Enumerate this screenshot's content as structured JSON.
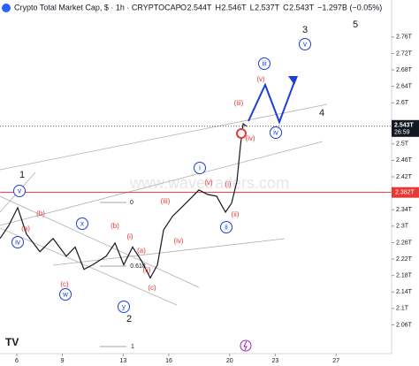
{
  "header": {
    "symbol": "Crypto Total Market Cap, $ · 1h · CRYPTOCAP",
    "quote": [
      {
        "label": "O",
        "value": "2.544T"
      },
      {
        "label": "H",
        "value": "2.546T"
      },
      {
        "label": "L",
        "value": "2.537T"
      },
      {
        "label": "C",
        "value": "2.543T"
      }
    ],
    "change": "−1.297B (−0.05%)"
  },
  "chart_data": {
    "type": "line",
    "x": [
      4.9,
      5.48,
      6.06,
      6.64,
      7.52,
      8.39,
      9.26,
      9.84,
      10.42,
      11.0,
      11.88,
      12.46,
      13.04,
      13.62,
      14.2,
      14.78,
      15.25,
      15.66,
      16.24,
      16.82,
      17.4,
      17.98,
      18.56,
      19.14,
      19.73,
      20.13,
      20.48,
      20.71,
      20.89,
      21.12
    ],
    "series": [
      {
        "color": "#131722",
        "values": [
          2.27,
          2.302,
          2.345,
          2.281,
          2.238,
          2.27,
          2.227,
          2.249,
          2.195,
          2.206,
          2.227,
          2.259,
          2.206,
          2.249,
          2.216,
          2.174,
          2.206,
          2.291,
          2.324,
          2.345,
          2.366,
          2.388,
          2.377,
          2.373,
          2.334,
          2.356,
          2.409,
          2.495,
          2.549,
          2.543
        ]
      }
    ],
    "xlim": [
      4.9,
      30.65
    ],
    "xticks": [
      6,
      9,
      13,
      16,
      20,
      23,
      27
    ],
    "ylim": [
      1.99,
      2.85
    ],
    "yticks": [
      {
        "value": 2.76,
        "label": "2.76T"
      },
      {
        "value": 2.72,
        "label": "2.72T"
      },
      {
        "value": 2.68,
        "label": "2.68T"
      },
      {
        "value": 2.64,
        "label": "2.64T"
      },
      {
        "value": 2.6,
        "label": "2.6T"
      },
      {
        "value": 2.5,
        "label": "2.5T"
      },
      {
        "value": 2.46,
        "label": "2.46T"
      },
      {
        "value": 2.42,
        "label": "2.42T"
      },
      {
        "value": 2.34,
        "label": "2.34T"
      },
      {
        "value": 2.3,
        "label": "2.3T"
      },
      {
        "value": 2.26,
        "label": "2.26T"
      },
      {
        "value": 2.22,
        "label": "2.22T"
      },
      {
        "value": 2.18,
        "label": "2.18T"
      },
      {
        "value": 2.14,
        "label": "2.14T"
      },
      {
        "value": 2.1,
        "label": "2.1T"
      },
      {
        "value": 2.06,
        "label": "2.06T"
      }
    ],
    "last_price": {
      "value": 2.543,
      "label": "2.543T",
      "countdown": "26:59"
    },
    "level": {
      "value": 2.382,
      "label": "2.382T"
    }
  },
  "watermark": "www.wavetraders.com",
  "annotations": [
    "1",
    "v",
    "iv",
    "(a)",
    "(b)",
    "x",
    "(c)",
    "w",
    "(b)",
    "(a)",
    "(c)",
    "y",
    "2",
    "(i)",
    "(ii)",
    "(iii)",
    "(iv)",
    "(v)",
    "i",
    "ii",
    "(i)",
    "(ii)",
    "(iii)",
    "(iv)",
    "iv",
    "(v)",
    "iii",
    "3",
    "v",
    "4",
    "5",
    "0",
    "0.618",
    "1"
  ]
}
